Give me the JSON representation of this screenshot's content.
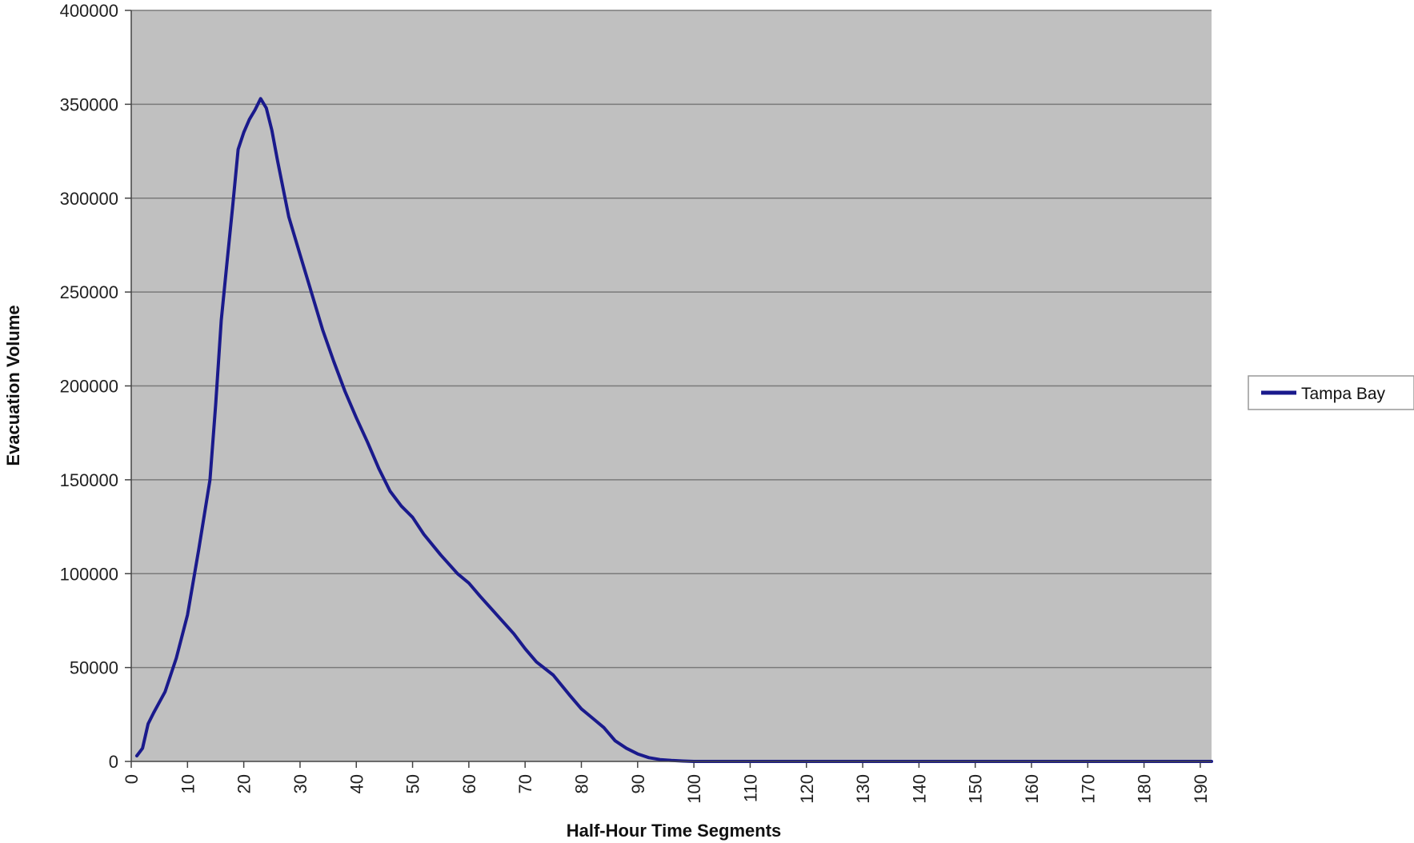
{
  "chart_data": {
    "type": "line",
    "xlabel": "Half-Hour Time Segments",
    "ylabel": "Evacuation Volume",
    "xlim": [
      0,
      192
    ],
    "ylim": [
      0,
      400000
    ],
    "x_ticks": [
      0,
      10,
      20,
      30,
      40,
      50,
      60,
      70,
      80,
      90,
      100,
      110,
      120,
      130,
      140,
      150,
      160,
      170,
      180,
      190
    ],
    "y_ticks": [
      0,
      50000,
      100000,
      150000,
      200000,
      250000,
      300000,
      350000,
      400000
    ],
    "grid": true,
    "legend_position": "right",
    "plot_background": "#c0c0c0",
    "series": [
      {
        "name": "Tampa Bay",
        "color": "#1a1a8c",
        "x": [
          1,
          2,
          3,
          4,
          6,
          8,
          10,
          12,
          14,
          15,
          16,
          17,
          18,
          19,
          20,
          21,
          22,
          23,
          24,
          25,
          26,
          28,
          30,
          32,
          34,
          36,
          38,
          40,
          42,
          44,
          46,
          48,
          50,
          52,
          55,
          58,
          60,
          62,
          65,
          68,
          70,
          72,
          75,
          78,
          80,
          82,
          84,
          86,
          88,
          90,
          92,
          94,
          96,
          98,
          100,
          103,
          105,
          110,
          120,
          150,
          192
        ],
        "values": [
          3000,
          7000,
          20000,
          26000,
          37000,
          55000,
          78000,
          113000,
          150000,
          190000,
          235000,
          265000,
          295000,
          326000,
          335000,
          342000,
          347000,
          353000,
          348000,
          336000,
          320000,
          290000,
          270000,
          250000,
          230000,
          213000,
          197000,
          183000,
          170000,
          156000,
          144000,
          136000,
          130000,
          121000,
          110000,
          100000,
          95000,
          88000,
          78000,
          68000,
          60000,
          53000,
          46000,
          35000,
          28000,
          23000,
          18000,
          11000,
          7000,
          4000,
          2000,
          1000,
          500,
          200,
          0,
          0,
          0,
          0,
          0,
          0,
          0
        ]
      }
    ]
  }
}
